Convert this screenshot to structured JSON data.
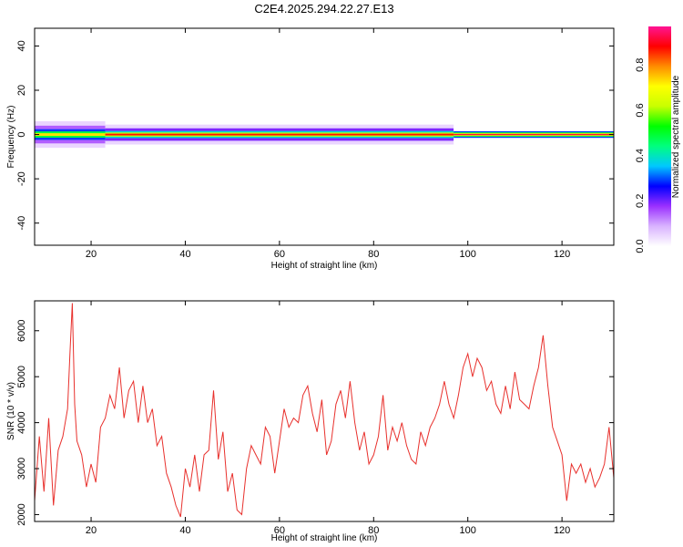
{
  "figure_title": "C2E4.2025.294.22.27.E13",
  "chart_data": [
    {
      "type": "heatmap",
      "xlabel": "Height of straight line (km)",
      "ylabel": "Frequency (Hz)",
      "xlim": [
        8,
        131
      ],
      "ylim": [
        -50,
        48
      ],
      "xticks": [
        20,
        40,
        60,
        80,
        100,
        120
      ],
      "yticks": [
        -40,
        -20,
        0,
        20,
        40
      ],
      "grid": false,
      "colorbar": {
        "label": "Normalized spectral amplitude",
        "range": [
          0,
          0.97
        ],
        "ticks": [
          "0.0",
          "0.2",
          "0.4",
          "0.6",
          "0.8"
        ],
        "colors": [
          "#ffffff",
          "#d9b3ff",
          "#9b30ff",
          "#0000ff",
          "#00c8ff",
          "#00ff7f",
          "#00ff00",
          "#c8ff00",
          "#ffff00",
          "#ff8c00",
          "#ff0000",
          "#ff1493"
        ]
      },
      "bands": [
        {
          "x_range": [
            8,
            23
          ],
          "half_width_hz": [
            6,
            4,
            2.4,
            1.4,
            0.6
          ],
          "levels": [
            0.05,
            0.15,
            0.3,
            0.5,
            0.75
          ]
        },
        {
          "x_range": [
            23,
            97
          ],
          "half_width_hz": [
            4.5,
            2.8,
            1.6,
            0.9,
            0.4
          ],
          "levels": [
            0.05,
            0.2,
            0.4,
            0.65,
            0.9
          ]
        },
        {
          "x_range": [
            97,
            131
          ],
          "half_width_hz": [
            3.5,
            1.5,
            1.0,
            0.6,
            0.3
          ],
          "levels": [
            0.0,
            0.3,
            0.5,
            0.7,
            0.95
          ]
        }
      ]
    },
    {
      "type": "line",
      "xlabel": "Height of straight line (km)",
      "ylabel": "SNR (10 * v/v)",
      "xlim": [
        8,
        131
      ],
      "ylim": [
        1850,
        6650
      ],
      "xticks": [
        20,
        40,
        60,
        80,
        100,
        120
      ],
      "yticks": [
        2000,
        3000,
        4000,
        5000,
        6000
      ],
      "grid": false,
      "line_color": "#e8302c",
      "series": [
        {
          "x": [
            8,
            9,
            10,
            11,
            12,
            13,
            14,
            15,
            15.5,
            16,
            16.5,
            17,
            18,
            19,
            20,
            21,
            22,
            23,
            24,
            25,
            26,
            27,
            28,
            29,
            30,
            31,
            32,
            33,
            34,
            35,
            36,
            37,
            38,
            39,
            40,
            41,
            42,
            43,
            44,
            45,
            46,
            47,
            48,
            49,
            50,
            51,
            52,
            53,
            54,
            55,
            56,
            57,
            58,
            59,
            60,
            61,
            62,
            63,
            64,
            65,
            66,
            67,
            68,
            69,
            70,
            71,
            72,
            73,
            74,
            75,
            76,
            77,
            78,
            79,
            80,
            81,
            82,
            83,
            84,
            85,
            86,
            87,
            88,
            89,
            90,
            91,
            92,
            93,
            94,
            95,
            96,
            97,
            98,
            99,
            100,
            101,
            102,
            103,
            104,
            105,
            106,
            107,
            108,
            109,
            110,
            111,
            112,
            113,
            114,
            115,
            116,
            117,
            118,
            119,
            120,
            121,
            122,
            123,
            124,
            125,
            126,
            127,
            128,
            129,
            130,
            131
          ],
          "y": [
            2300,
            3700,
            2500,
            4100,
            2200,
            3400,
            3700,
            4300,
            5500,
            6600,
            4400,
            3600,
            3300,
            2600,
            3100,
            2700,
            3900,
            4100,
            4600,
            4300,
            5200,
            4100,
            4700,
            4900,
            4000,
            4800,
            4000,
            4300,
            3500,
            3700,
            2900,
            2600,
            2200,
            1950,
            3000,
            2600,
            3300,
            2500,
            3300,
            3400,
            4700,
            3200,
            3800,
            2500,
            2900,
            2100,
            2000,
            3000,
            3500,
            3300,
            3100,
            3900,
            3700,
            2900,
            3600,
            4300,
            3900,
            4100,
            4000,
            4600,
            4800,
            4200,
            3800,
            4500,
            3300,
            3600,
            4400,
            4700,
            4100,
            4900,
            4000,
            3400,
            3800,
            3100,
            3300,
            3700,
            4600,
            3400,
            3900,
            3600,
            4000,
            3500,
            3200,
            3100,
            3800,
            3500,
            3900,
            4100,
            4400,
            4900,
            4400,
            4100,
            4600,
            5200,
            5500,
            5000,
            5400,
            5200,
            4700,
            4900,
            4400,
            4200,
            4800,
            4300,
            5100,
            4500,
            4400,
            4300,
            4800,
            5200,
            5900,
            4800,
            3900,
            3600,
            3300,
            2300,
            3100,
            2900,
            3100,
            2700,
            3000,
            2600,
            2800,
            3100,
            3900,
            2800
          ]
        }
      ]
    }
  ]
}
